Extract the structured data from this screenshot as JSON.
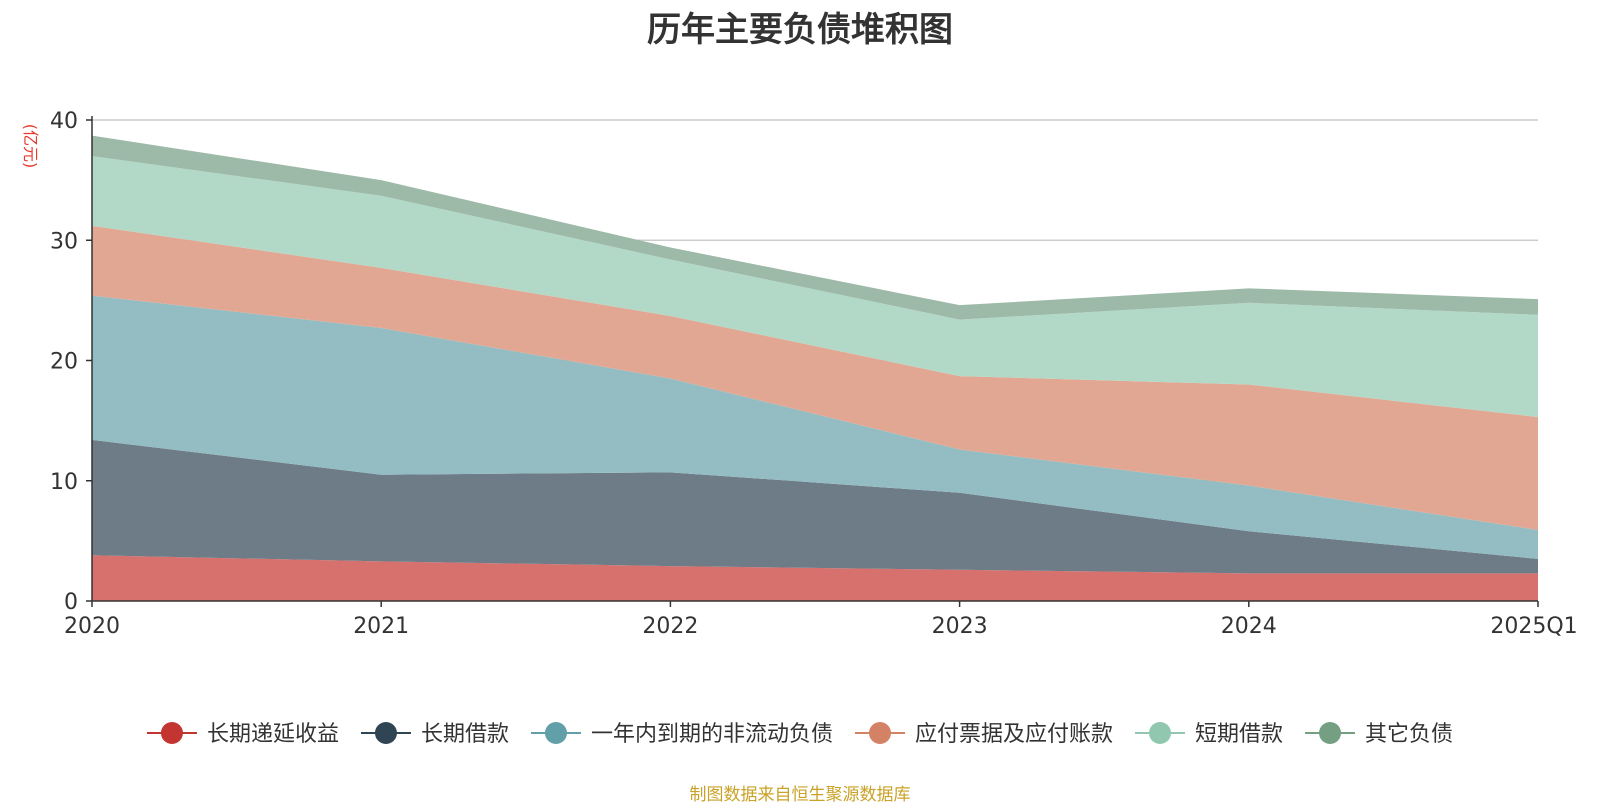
{
  "chart_data": {
    "type": "area",
    "stacked": true,
    "title": "历年主要负债堆积图",
    "unit_label": "(亿元)",
    "source_note": "制图数据来自恒生聚源数据库",
    "categories": [
      "2020",
      "2021",
      "2022",
      "2023",
      "2024",
      "2025Q1"
    ],
    "y_ticks": [
      0,
      10,
      20,
      30,
      40
    ],
    "ylim": [
      0,
      40
    ],
    "grid": true,
    "legend_position": "bottom",
    "series": [
      {
        "name": "长期递延收益",
        "color": "#c23531",
        "fill": "#d6716e",
        "values": [
          3.8,
          3.3,
          2.9,
          2.6,
          2.3,
          2.3
        ]
      },
      {
        "name": "长期借款",
        "color": "#2f4554",
        "fill": "#6e7c87",
        "values": [
          9.6,
          7.2,
          7.8,
          6.4,
          3.5,
          1.2
        ]
      },
      {
        "name": "一年内到期的非流动负债",
        "color": "#61a0a8",
        "fill": "#93bdc3",
        "values": [
          12.0,
          12.2,
          7.8,
          3.6,
          3.8,
          2.4
        ]
      },
      {
        "name": "应付票据及应付账款",
        "color": "#d48265",
        "fill": "#e2a792",
        "values": [
          5.8,
          5.0,
          5.2,
          6.1,
          8.4,
          9.4
        ]
      },
      {
        "name": "短期借款",
        "color": "#91c7ae",
        "fill": "#b2d9c7",
        "values": [
          5.8,
          6.0,
          4.7,
          4.7,
          6.8,
          8.5
        ]
      },
      {
        "name": "其它负债",
        "color": "#749f83",
        "fill": "#9db9a7",
        "values": [
          1.7,
          1.3,
          1.0,
          1.2,
          1.2,
          1.3
        ]
      }
    ]
  }
}
